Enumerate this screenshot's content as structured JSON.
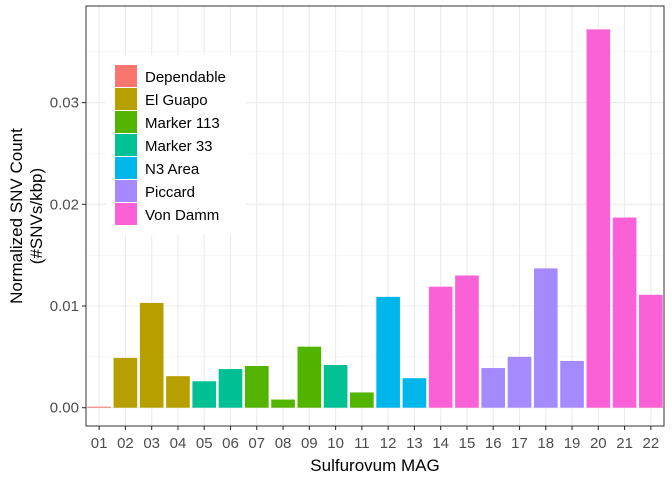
{
  "chart_data": {
    "type": "bar",
    "xlabel": "Sulfurovum MAG",
    "ylabel_lines": [
      "Normalized SNV Count",
      "(#SNVs/kbp)"
    ],
    "ylim": [
      -0.0018,
      0.0395
    ],
    "yticks": [
      0.0,
      0.01,
      0.02,
      0.03
    ],
    "ytick_labels": [
      "0.00",
      "0.01",
      "0.02",
      "0.03"
    ],
    "grid": true,
    "legend_position": "top-left",
    "categories": [
      "01",
      "02",
      "03",
      "04",
      "05",
      "06",
      "07",
      "08",
      "09",
      "10",
      "11",
      "12",
      "13",
      "14",
      "15",
      "16",
      "17",
      "18",
      "19",
      "20",
      "21",
      "22"
    ],
    "values": [
      0.0001,
      0.0049,
      0.0103,
      0.0031,
      0.0026,
      0.0038,
      0.0041,
      0.0008,
      0.006,
      0.0042,
      0.0015,
      0.0109,
      0.0029,
      0.0119,
      0.013,
      0.0039,
      0.005,
      0.0137,
      0.0046,
      0.0372,
      0.0187,
      0.0111
    ],
    "groups": [
      "Dependable",
      "El Guapo",
      "El Guapo",
      "El Guapo",
      "Marker 33",
      "Marker 33",
      "Marker 113",
      "Marker 113",
      "Marker 113",
      "Marker 33",
      "Marker 113",
      "N3 Area",
      "N3 Area",
      "Von Damm",
      "Von Damm",
      "Piccard",
      "Piccard",
      "Piccard",
      "Piccard",
      "Von Damm",
      "Von Damm",
      "Von Damm"
    ],
    "legend": [
      {
        "name": "Dependable",
        "color": "#F8766D"
      },
      {
        "name": "El Guapo",
        "color": "#B79F00"
      },
      {
        "name": "Marker 113",
        "color": "#53B400"
      },
      {
        "name": "Marker 33",
        "color": "#00C094"
      },
      {
        "name": "N3 Area",
        "color": "#00B6EB"
      },
      {
        "name": "Piccard",
        "color": "#A58AFF"
      },
      {
        "name": "Von Damm",
        "color": "#FB61D7"
      }
    ]
  }
}
